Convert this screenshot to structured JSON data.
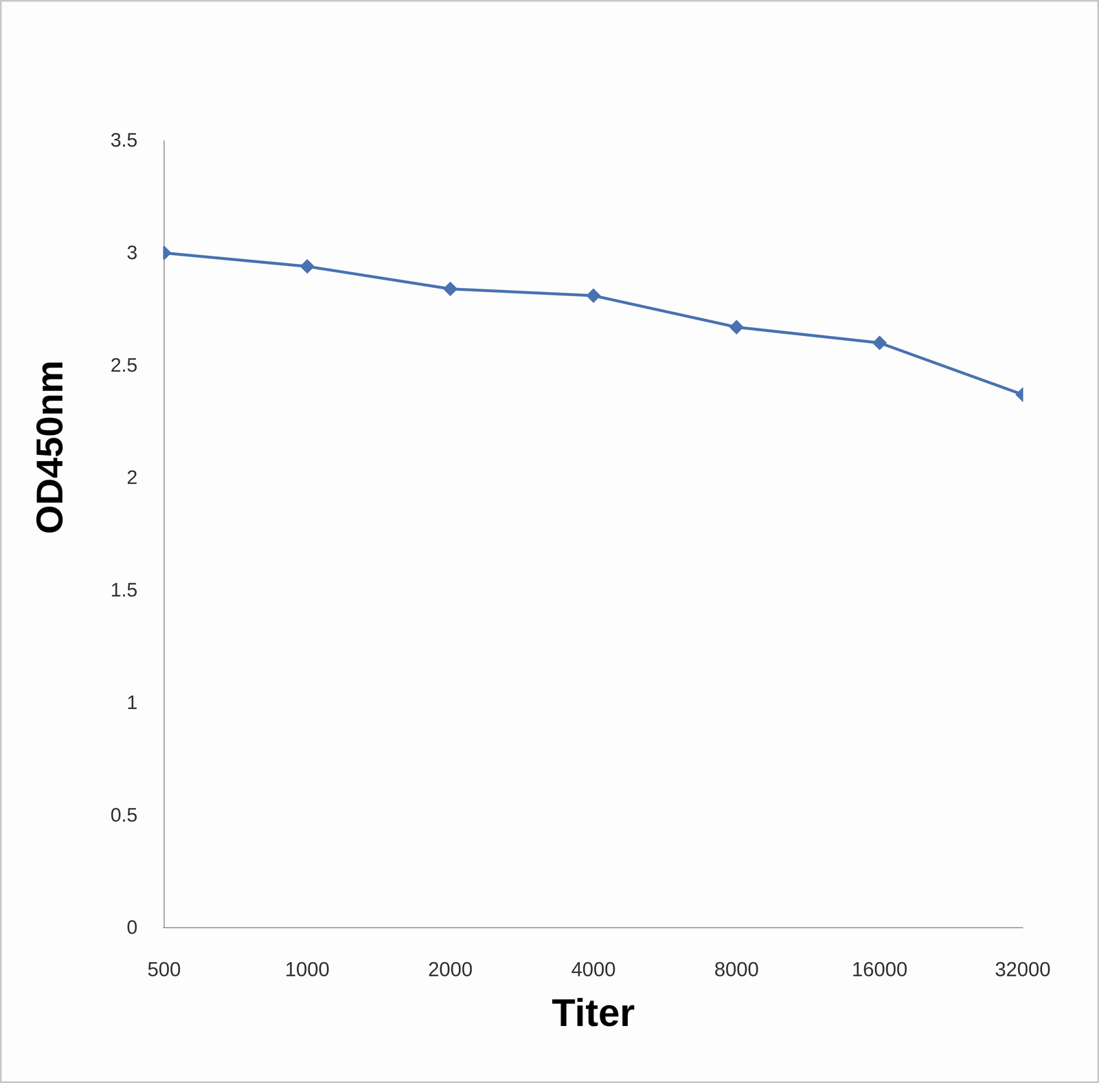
{
  "chart_data": {
    "type": "line",
    "x_label": "Titer",
    "y_label": "OD450nm",
    "categories": [
      "500",
      "1000",
      "2000",
      "4000",
      "8000",
      "16000",
      "32000"
    ],
    "values": [
      3.0,
      2.94,
      2.84,
      2.81,
      2.67,
      2.6,
      2.37
    ],
    "color": "#4a72b0",
    "marker": "diamond",
    "line_style": "solid",
    "ylim": [
      0,
      3.5
    ],
    "yticks": [
      0,
      0.5,
      1,
      1.5,
      2,
      2.5,
      3,
      3.5
    ],
    "grid": false
  }
}
